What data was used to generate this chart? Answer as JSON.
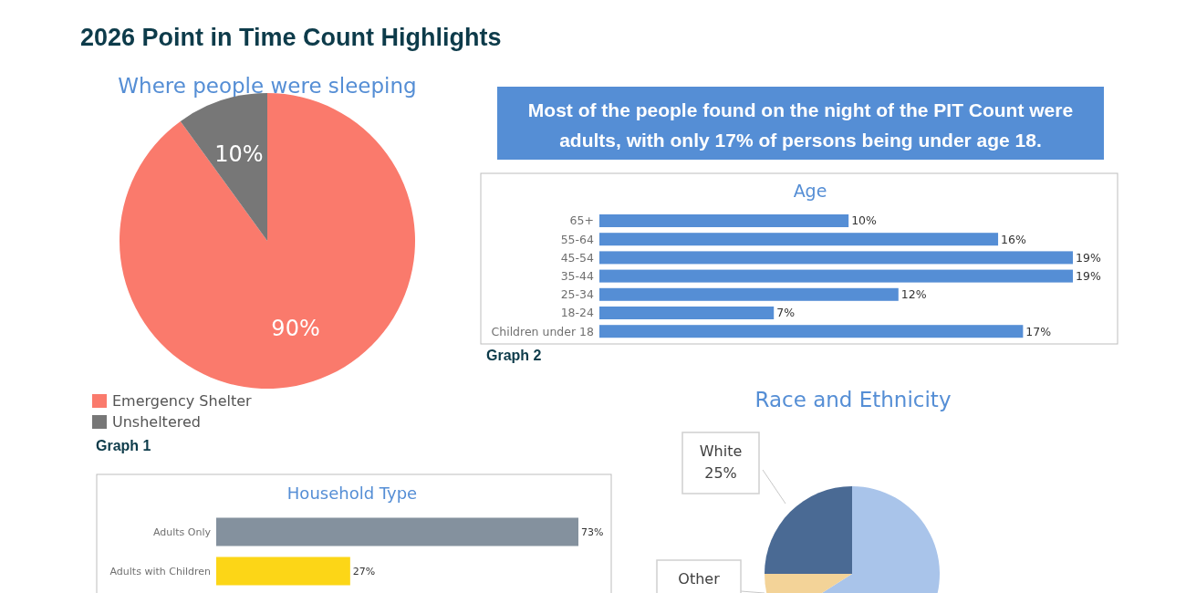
{
  "chart_data": [
    {
      "type": "pie",
      "title": "Where people were sleeping",
      "categories": [
        "Emergency Shelter",
        "Unsheltered"
      ],
      "values": [
        90,
        10
      ],
      "colors": [
        "#fa7a6c",
        "#777777"
      ],
      "value_labels": [
        "90%",
        "10%"
      ],
      "legend": "bottom left",
      "annotations": [
        "2026 Point in Time Count Highlights",
        "Graph 1"
      ]
    },
    {
      "type": "bar",
      "orientation": "horizontal",
      "title": "Age",
      "categories": [
        "65+",
        "55-64",
        "45-54",
        "35-44",
        "25-34",
        "18-24",
        "Children under 18"
      ],
      "values": [
        10,
        16,
        19,
        19,
        12,
        7,
        17
      ],
      "color": "#558ed5",
      "value_labels": [
        "10%",
        "16%",
        "19%",
        "19%",
        "12%",
        "7%",
        "17%"
      ],
      "annotations": [
        "Most of the people found on the night of the PIT Count were adults, with only 17% of persons being under age 18.",
        "Graph 2"
      ]
    },
    {
      "type": "bar",
      "orientation": "horizontal",
      "title": "Household Type",
      "categories": [
        "Adults Only",
        "Adults with Children"
      ],
      "values": [
        73,
        27
      ],
      "colors": [
        "#84919e",
        "#fcd617"
      ],
      "value_labels": [
        "73%",
        "27%"
      ]
    },
    {
      "type": "pie",
      "title": "Race and Ethnicity",
      "categories": [
        null,
        "Other",
        "White"
      ],
      "values": [
        66,
        9,
        25
      ],
      "colors": [
        "#a9c4ea",
        "#f3d398",
        "#4a6a94"
      ],
      "value_labels": [
        null,
        null,
        "25%"
      ]
    }
  ]
}
